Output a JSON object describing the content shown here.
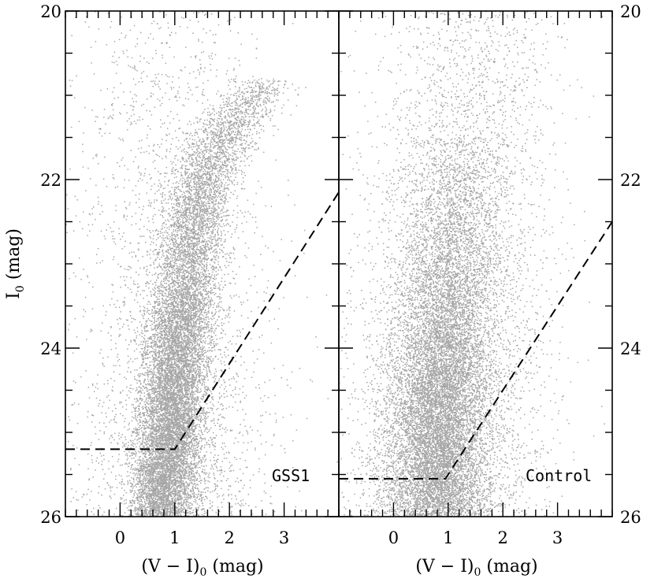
{
  "chart_data": {
    "type": "scatter",
    "point_color": "#a6a6a6",
    "ylabel": "I",
    "ylabel_sub": "0",
    "ylabel_unit": " (mag)",
    "y_inverted": true,
    "ylim": [
      26,
      20
    ],
    "yticks_major": [
      20,
      22,
      24,
      26
    ],
    "yticks_minor_step": 0.5,
    "panels": [
      {
        "label": "GSS1",
        "xlabel": "(V − I)",
        "xlabel_sub": "0",
        "xlabel_unit": " (mag)",
        "xlim": [
          -1,
          4
        ],
        "xticks_major": [
          0,
          1,
          2,
          3
        ],
        "xticks_minor_step": 0.2,
        "y_tick_labels_side": "left",
        "cut_line": {
          "x": [
            -1.0,
            1.0,
            4.0
          ],
          "y": [
            25.2,
            25.2,
            22.15
          ]
        },
        "populations": [
          {
            "ridge": [
              [
                20.9,
                2.6
              ],
              [
                21.3,
                2.05
              ],
              [
                21.8,
                1.6
              ],
              [
                22.3,
                1.42
              ],
              [
                23.0,
                1.25
              ],
              [
                24.0,
                1.05
              ],
              [
                25.0,
                0.9
              ],
              [
                26.0,
                0.75
              ]
            ],
            "color_spread": 0.3,
            "weight": 0.82,
            "mag_weight": [
              [
                20.8,
                0.3
              ],
              [
                21.2,
                0.6
              ],
              [
                22.0,
                0.8
              ],
              [
                23.0,
                1.0
              ],
              [
                24.0,
                1.6
              ],
              [
                25.0,
                2.0
              ],
              [
                26.0,
                1.7
              ]
            ]
          },
          {
            "ridge": [
              [
                20.0,
                0.8
              ],
              [
                23.0,
                0.9
              ],
              [
                26.0,
                1.0
              ]
            ],
            "color_spread": 0.9,
            "weight": 0.18,
            "mag_weight": [
              [
                20.0,
                0.3
              ],
              [
                23.0,
                0.6
              ],
              [
                26.0,
                1.2
              ]
            ]
          }
        ]
      },
      {
        "label": "Control",
        "xlabel": "(V − I)",
        "xlabel_sub": "0",
        "xlabel_unit": " (mag)",
        "xlim": [
          -1,
          4
        ],
        "xticks_major": [
          0,
          1,
          2,
          3
        ],
        "xticks_minor_step": 0.2,
        "y_tick_labels_side": "right",
        "cut_line": {
          "x": [
            -1.0,
            0.95,
            4.0
          ],
          "y": [
            25.55,
            25.55,
            22.5
          ]
        },
        "populations": [
          {
            "ridge": [
              [
                21.5,
                1.25
              ],
              [
                23.0,
                1.0
              ],
              [
                24.5,
                0.85
              ],
              [
                26.0,
                0.75
              ]
            ],
            "color_spread": 0.45,
            "weight": 0.65,
            "mag_weight": [
              [
                21.5,
                0.2
              ],
              [
                22.5,
                0.5
              ],
              [
                23.5,
                1.0
              ],
              [
                24.5,
                1.8
              ],
              [
                25.5,
                1.8
              ],
              [
                26.0,
                1.4
              ]
            ]
          },
          {
            "ridge": [
              [
                20.0,
                1.4
              ],
              [
                22.0,
                1.2
              ],
              [
                24.0,
                1.0
              ],
              [
                26.0,
                0.9
              ]
            ],
            "color_spread": 0.85,
            "weight": 0.35,
            "mag_weight": [
              [
                20.0,
                0.4
              ],
              [
                22.0,
                0.6
              ],
              [
                24.0,
                1.0
              ],
              [
                26.0,
                1.2
              ]
            ]
          }
        ]
      }
    ]
  }
}
